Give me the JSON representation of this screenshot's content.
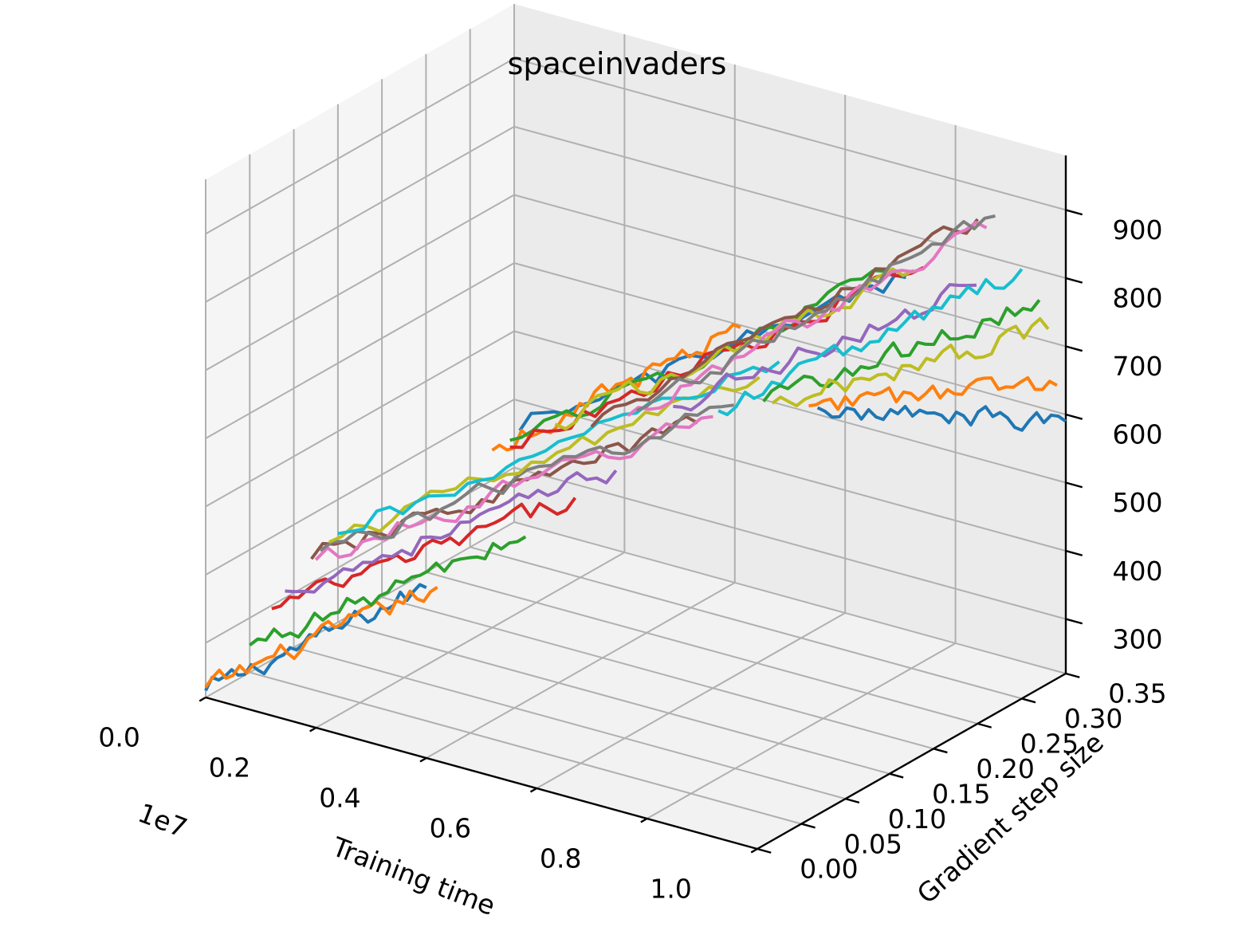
{
  "chart_data": {
    "type": "line",
    "projection": "3d",
    "title": "spaceinvaders",
    "xlabel": "Training time",
    "ylabel": "Gradient step size",
    "zlabel": "",
    "x_offset_label": "1e7",
    "xlim": [
      0.0,
      1.0
    ],
    "ylim": [
      0.0,
      0.35
    ],
    "zlim": [
      220,
      980
    ],
    "x_ticks": [
      "0.0",
      "0.2",
      "0.4",
      "0.6",
      "0.8",
      "1.0"
    ],
    "y_ticks": [
      "0.00",
      "0.05",
      "0.10",
      "0.15",
      "0.20",
      "0.25",
      "0.30",
      "0.35"
    ],
    "z_ticks": [
      "300",
      "400",
      "500",
      "600",
      "700",
      "800",
      "900"
    ],
    "grid": true,
    "series": [
      {
        "color": "#1f77b4",
        "y": 0.0,
        "x_range": [
          0.0,
          0.4
        ],
        "z_start": 230,
        "z_end": 470
      },
      {
        "color": "#ff7f0e",
        "y": 0.0,
        "x_range": [
          0.0,
          0.42
        ],
        "z_start": 235,
        "z_end": 475
      },
      {
        "color": "#2ca02c",
        "y": 0.05,
        "x_range": [
          0.0,
          0.5
        ],
        "z_start": 260,
        "z_end": 530
      },
      {
        "color": "#d62728",
        "y": 0.075,
        "x_range": [
          0.0,
          0.55
        ],
        "z_start": 295,
        "z_end": 580
      },
      {
        "color": "#9467bd",
        "y": 0.09,
        "x_range": [
          0.0,
          0.6
        ],
        "z_start": 310,
        "z_end": 620
      },
      {
        "color": "#8c564b",
        "y": 0.12,
        "x_range": [
          0.0,
          0.7
        ],
        "z_start": 335,
        "z_end": 690
      },
      {
        "color": "#e377c2",
        "y": 0.125,
        "x_range": [
          0.0,
          0.72
        ],
        "z_start": 330,
        "z_end": 700
      },
      {
        "color": "#7f7f7f",
        "y": 0.13,
        "x_range": [
          0.0,
          0.75
        ],
        "z_start": 340,
        "z_end": 720
      },
      {
        "color": "#bcbd22",
        "y": 0.14,
        "x_range": [
          0.0,
          0.78
        ],
        "z_start": 345,
        "z_end": 760
      },
      {
        "color": "#17becf",
        "y": 0.15,
        "x_range": [
          0.0,
          0.8
        ],
        "z_start": 350,
        "z_end": 780
      },
      {
        "color": "#1f77b4",
        "y": 0.2,
        "x_range": [
          0.25,
          0.95
        ],
        "z_start": 520,
        "z_end": 900
      },
      {
        "color": "#ff7f0e",
        "y": 0.2,
        "x_range": [
          0.2,
          0.65
        ],
        "z_start": 480,
        "z_end": 760
      },
      {
        "color": "#2ca02c",
        "y": 0.22,
        "x_range": [
          0.2,
          0.9
        ],
        "z_start": 480,
        "z_end": 880
      },
      {
        "color": "#d62728",
        "y": 0.22,
        "x_range": [
          0.2,
          0.95
        ],
        "z_start": 470,
        "z_end": 900
      },
      {
        "color": "#bcbd22",
        "y": 0.24,
        "x_range": [
          0.25,
          0.9
        ],
        "z_start": 500,
        "z_end": 870
      },
      {
        "color": "#8c564b",
        "y": 0.25,
        "x_range": [
          0.3,
          1.0
        ],
        "z_start": 500,
        "z_end": 960
      },
      {
        "color": "#e377c2",
        "y": 0.26,
        "x_range": [
          0.35,
          1.0
        ],
        "z_start": 520,
        "z_end": 940
      },
      {
        "color": "#7f7f7f",
        "y": 0.27,
        "x_range": [
          0.35,
          1.0
        ],
        "z_start": 520,
        "z_end": 950
      },
      {
        "color": "#9467bd",
        "y": 0.28,
        "x_range": [
          0.4,
          0.95
        ],
        "z_start": 530,
        "z_end": 830
      },
      {
        "color": "#17becf",
        "y": 0.3,
        "x_range": [
          0.45,
          1.0
        ],
        "z_start": 520,
        "z_end": 850
      },
      {
        "color": "#2ca02c",
        "y": 0.32,
        "x_range": [
          0.5,
          1.0
        ],
        "z_start": 530,
        "z_end": 790
      },
      {
        "color": "#bcbd22",
        "y": 0.33,
        "x_range": [
          0.5,
          1.0
        ],
        "z_start": 520,
        "z_end": 740
      },
      {
        "color": "#ff7f0e",
        "y": 0.34,
        "x_range": [
          0.55,
          1.0
        ],
        "z_start": 520,
        "z_end": 650
      },
      {
        "color": "#1f77b4",
        "y": 0.35,
        "x_range": [
          0.55,
          1.0
        ],
        "z_start": 510,
        "z_end": 590
      }
    ]
  }
}
